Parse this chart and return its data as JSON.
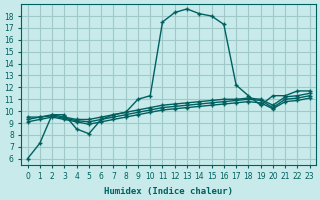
{
  "xlabel": "Humidex (Indice chaleur)",
  "bg_color": "#c8eaea",
  "grid_color": "#a0c8c8",
  "line_color": "#006060",
  "xlim": [
    -0.5,
    23.5
  ],
  "ylim": [
    5.5,
    19.0
  ],
  "xticks": [
    0,
    1,
    2,
    3,
    4,
    5,
    6,
    7,
    8,
    9,
    10,
    11,
    12,
    13,
    14,
    15,
    16,
    17,
    18,
    19,
    20,
    21,
    22,
    23
  ],
  "yticks": [
    6,
    7,
    8,
    9,
    10,
    11,
    12,
    13,
    14,
    15,
    16,
    17,
    18
  ],
  "curve1_x": [
    0,
    1,
    2,
    3,
    4,
    5,
    6,
    7,
    8,
    9,
    10,
    11,
    12,
    13,
    14,
    15,
    16,
    17,
    18,
    19,
    20,
    21,
    22,
    23
  ],
  "curve1_y": [
    6.0,
    7.3,
    9.7,
    9.7,
    8.5,
    8.1,
    9.3,
    9.7,
    9.9,
    11.0,
    11.3,
    17.5,
    18.3,
    18.6,
    18.2,
    18.0,
    17.3,
    12.2,
    11.3,
    10.5,
    11.3,
    11.3,
    11.7,
    11.7
  ],
  "curve2_x": [
    0,
    1,
    2,
    3,
    4,
    5,
    6,
    7,
    8,
    9,
    10,
    11,
    12,
    13,
    14,
    15,
    16,
    17,
    18,
    19,
    20,
    21,
    22,
    23
  ],
  "curve2_y": [
    9.5,
    9.5,
    9.7,
    9.5,
    9.3,
    9.3,
    9.5,
    9.7,
    9.9,
    10.1,
    10.3,
    10.5,
    10.6,
    10.7,
    10.8,
    10.9,
    11.0,
    11.0,
    11.1,
    11.0,
    10.5,
    11.2,
    11.3,
    11.5
  ],
  "curve3_x": [
    0,
    1,
    2,
    3,
    4,
    5,
    6,
    7,
    8,
    9,
    10,
    11,
    12,
    13,
    14,
    15,
    16,
    17,
    18,
    19,
    20,
    21,
    22,
    23
  ],
  "curve3_y": [
    9.3,
    9.5,
    9.6,
    9.4,
    9.2,
    9.1,
    9.3,
    9.5,
    9.7,
    9.9,
    10.1,
    10.3,
    10.4,
    10.5,
    10.6,
    10.7,
    10.8,
    10.9,
    11.0,
    10.9,
    10.3,
    11.0,
    11.1,
    11.3
  ],
  "curve4_x": [
    0,
    1,
    2,
    3,
    4,
    5,
    6,
    7,
    8,
    9,
    10,
    11,
    12,
    13,
    14,
    15,
    16,
    17,
    18,
    19,
    20,
    21,
    22,
    23
  ],
  "curve4_y": [
    9.1,
    9.3,
    9.5,
    9.3,
    9.1,
    8.9,
    9.1,
    9.3,
    9.5,
    9.7,
    9.9,
    10.1,
    10.2,
    10.3,
    10.4,
    10.5,
    10.6,
    10.7,
    10.8,
    10.7,
    10.2,
    10.8,
    10.9,
    11.1
  ]
}
